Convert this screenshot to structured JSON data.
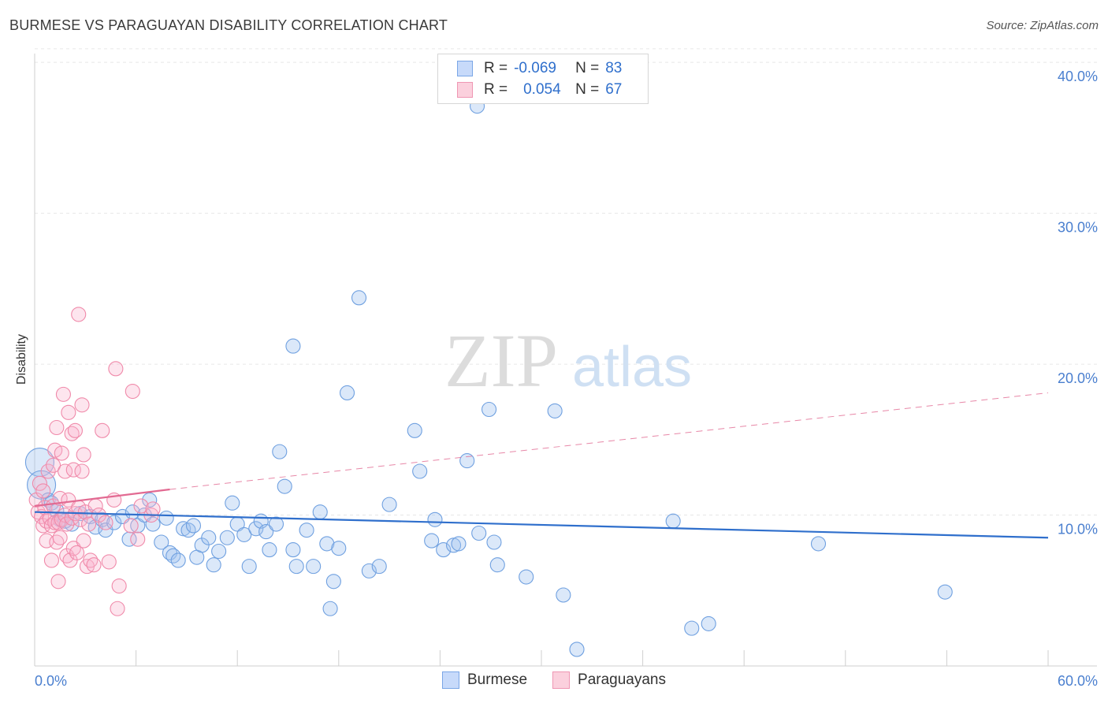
{
  "title": "BURMESE VS PARAGUAYAN DISABILITY CORRELATION CHART",
  "source": "Source: ZipAtlas.com",
  "watermark": {
    "zip": "ZIP",
    "atlas": "atlas"
  },
  "legend": {
    "burmese": {
      "r_label": "R =",
      "r_value": "-0.069",
      "n_label": "N =",
      "n_value": "83"
    },
    "paraguayan": {
      "r_label": "R =",
      "r_value": "0.054",
      "n_label": "N =",
      "n_value": "67"
    }
  },
  "colors": {
    "burmese": "#6fa0e0",
    "burmese_line": "#2f6fcc",
    "paraguayan": "#f08aaa",
    "paraguayan_line": "#e26a92"
  },
  "chart_data": {
    "type": "scatter",
    "title": "BURMESE VS PARAGUAYAN DISABILITY CORRELATION CHART",
    "xlabel": "",
    "ylabel": "Disability",
    "xlim": [
      0,
      60
    ],
    "ylim": [
      0,
      41
    ],
    "x_tick_labels": [
      "0.0%",
      "60.0%"
    ],
    "y_ticks": [
      10,
      20,
      30,
      40
    ],
    "y_tick_labels": [
      "10.0%",
      "20.0%",
      "30.0%",
      "40.0%"
    ],
    "grid": true,
    "legend_position": "top-center",
    "series": [
      {
        "name": "Burmese",
        "r": -0.069,
        "n": 83,
        "trend": {
          "x": [
            0,
            60
          ],
          "y": [
            10.2,
            8.5
          ],
          "style": "solid"
        },
        "points": [
          [
            0.3,
            13.5
          ],
          [
            0.4,
            12.0
          ],
          [
            0.8,
            11.0
          ],
          [
            1.0,
            10.8
          ],
          [
            1.3,
            10.3
          ],
          [
            1.5,
            9.7
          ],
          [
            1.8,
            9.6
          ],
          [
            2.2,
            9.4
          ],
          [
            2.7,
            10.1
          ],
          [
            3.3,
            9.9
          ],
          [
            3.6,
            9.2
          ],
          [
            4.0,
            9.7
          ],
          [
            4.2,
            9.0
          ],
          [
            4.7,
            9.5
          ],
          [
            5.2,
            9.9
          ],
          [
            5.6,
            8.4
          ],
          [
            5.8,
            10.2
          ],
          [
            6.1,
            9.3
          ],
          [
            6.5,
            10.0
          ],
          [
            6.8,
            11.0
          ],
          [
            7.0,
            9.4
          ],
          [
            7.5,
            8.2
          ],
          [
            7.8,
            9.8
          ],
          [
            8.0,
            7.5
          ],
          [
            8.2,
            7.3
          ],
          [
            8.5,
            7.0
          ],
          [
            8.8,
            9.1
          ],
          [
            9.1,
            9.0
          ],
          [
            9.4,
            9.3
          ],
          [
            9.6,
            7.2
          ],
          [
            9.9,
            8.0
          ],
          [
            10.3,
            8.5
          ],
          [
            10.6,
            6.7
          ],
          [
            10.9,
            7.6
          ],
          [
            11.4,
            8.5
          ],
          [
            11.7,
            10.8
          ],
          [
            12.0,
            9.4
          ],
          [
            12.4,
            8.7
          ],
          [
            12.7,
            6.6
          ],
          [
            13.1,
            9.1
          ],
          [
            13.4,
            9.6
          ],
          [
            13.7,
            8.9
          ],
          [
            13.9,
            7.7
          ],
          [
            14.3,
            9.4
          ],
          [
            14.5,
            14.2
          ],
          [
            14.8,
            11.9
          ],
          [
            15.3,
            7.7
          ],
          [
            15.5,
            6.6
          ],
          [
            15.3,
            21.2
          ],
          [
            16.1,
            9.0
          ],
          [
            16.5,
            6.6
          ],
          [
            16.9,
            10.2
          ],
          [
            17.3,
            8.1
          ],
          [
            17.7,
            5.6
          ],
          [
            18.0,
            7.8
          ],
          [
            18.5,
            18.1
          ],
          [
            19.2,
            24.4
          ],
          [
            19.8,
            6.3
          ],
          [
            20.4,
            6.6
          ],
          [
            21.0,
            10.7
          ],
          [
            22.5,
            15.6
          ],
          [
            22.8,
            12.9
          ],
          [
            23.5,
            8.3
          ],
          [
            23.7,
            9.7
          ],
          [
            24.2,
            7.7
          ],
          [
            24.8,
            8.0
          ],
          [
            25.1,
            8.1
          ],
          [
            25.6,
            13.6
          ],
          [
            26.3,
            8.8
          ],
          [
            26.2,
            37.1
          ],
          [
            26.9,
            17.0
          ],
          [
            27.2,
            8.2
          ],
          [
            27.4,
            6.7
          ],
          [
            29.1,
            5.9
          ],
          [
            30.8,
            16.9
          ],
          [
            31.3,
            4.7
          ],
          [
            32.1,
            1.1
          ],
          [
            37.8,
            9.6
          ],
          [
            38.9,
            2.5
          ],
          [
            39.9,
            2.8
          ],
          [
            46.4,
            8.1
          ],
          [
            53.9,
            4.9
          ],
          [
            17.5,
            3.8
          ]
        ]
      },
      {
        "name": "Paraguayans",
        "r": 0.054,
        "n": 67,
        "trend": {
          "x": [
            0,
            8.0,
            60
          ],
          "y": [
            10.6,
            11.7,
            18.1
          ],
          "style": "solid-then-dashed"
        },
        "points": [
          [
            0.1,
            11.0
          ],
          [
            0.2,
            10.2
          ],
          [
            0.3,
            12.1
          ],
          [
            0.4,
            9.9
          ],
          [
            0.5,
            9.3
          ],
          [
            0.5,
            11.6
          ],
          [
            0.6,
            10.5
          ],
          [
            0.7,
            9.6
          ],
          [
            0.7,
            8.3
          ],
          [
            0.8,
            12.9
          ],
          [
            0.9,
            9.8
          ],
          [
            1.0,
            9.3
          ],
          [
            1.0,
            7.0
          ],
          [
            1.1,
            10.6
          ],
          [
            1.1,
            13.3
          ],
          [
            1.2,
            9.5
          ],
          [
            1.2,
            14.3
          ],
          [
            1.3,
            8.2
          ],
          [
            1.3,
            15.8
          ],
          [
            1.4,
            9.5
          ],
          [
            1.4,
            5.6
          ],
          [
            1.5,
            11.1
          ],
          [
            1.5,
            8.5
          ],
          [
            1.6,
            9.7
          ],
          [
            1.6,
            14.1
          ],
          [
            1.7,
            18.0
          ],
          [
            1.8,
            10.0
          ],
          [
            1.8,
            12.9
          ],
          [
            1.9,
            9.4
          ],
          [
            1.9,
            7.3
          ],
          [
            2.0,
            16.8
          ],
          [
            2.0,
            11.0
          ],
          [
            2.1,
            7.0
          ],
          [
            2.2,
            15.4
          ],
          [
            2.2,
            9.8
          ],
          [
            2.3,
            7.8
          ],
          [
            2.3,
            13.0
          ],
          [
            2.4,
            10.1
          ],
          [
            2.4,
            15.6
          ],
          [
            2.5,
            7.5
          ],
          [
            2.6,
            10.5
          ],
          [
            2.6,
            23.3
          ],
          [
            2.7,
            9.7
          ],
          [
            2.8,
            12.9
          ],
          [
            2.8,
            17.3
          ],
          [
            2.9,
            14.0
          ],
          [
            2.9,
            8.3
          ],
          [
            3.0,
            10.2
          ],
          [
            3.1,
            6.6
          ],
          [
            3.2,
            9.4
          ],
          [
            3.3,
            7.0
          ],
          [
            3.5,
            6.7
          ],
          [
            3.6,
            10.6
          ],
          [
            3.8,
            10.0
          ],
          [
            4.0,
            15.6
          ],
          [
            4.2,
            9.5
          ],
          [
            4.4,
            6.9
          ],
          [
            4.7,
            11.0
          ],
          [
            4.8,
            19.7
          ],
          [
            4.9,
            3.8
          ],
          [
            5.0,
            5.3
          ],
          [
            5.7,
            9.3
          ],
          [
            5.8,
            18.2
          ],
          [
            6.1,
            8.4
          ],
          [
            6.3,
            10.6
          ],
          [
            6.9,
            10.0
          ],
          [
            7.0,
            10.4
          ]
        ]
      }
    ]
  }
}
